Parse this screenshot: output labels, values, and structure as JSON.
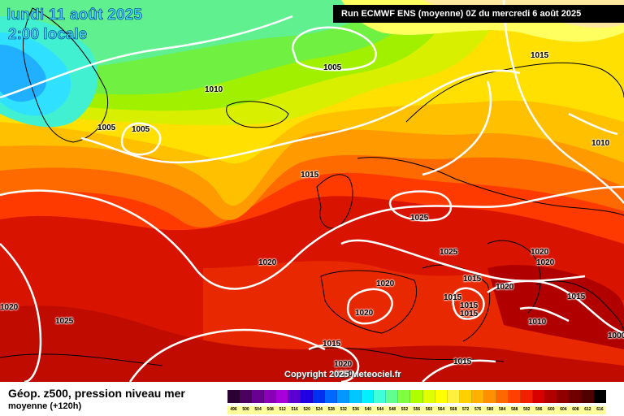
{
  "header": {
    "date": "lundi 11 août 2025",
    "local_time": "2:00 locale",
    "run": "Run ECMWF ENS (moyenne) 0Z du mercredi 6 août 2025"
  },
  "copyright": "Copyright 2025 Meteociel.fr",
  "isobar_labels": [
    "1005",
    "1005",
    "1005",
    "1010",
    "1015",
    "1015",
    "1010",
    "1025",
    "1020",
    "1025",
    "1020",
    "1020",
    "1020",
    "1020",
    "1015",
    "1020",
    "1015",
    "1015",
    "1015",
    "1010",
    "1015",
    "1020",
    "1025",
    "1015",
    "1020",
    "1020",
    "1015",
    "1000",
    "1020"
  ],
  "legend": {
    "title": "Géop. z500, pression niveau mer",
    "subtitle": "moyenne   (+120h)",
    "scale_values": [
      "496",
      "500",
      "504",
      "508",
      "512",
      "516",
      "520",
      "524",
      "528",
      "532",
      "536",
      "540",
      "544",
      "548",
      "552",
      "556",
      "560",
      "564",
      "568",
      "572",
      "576",
      "580",
      "584",
      "588",
      "592",
      "596",
      "600",
      "604",
      "608",
      "612",
      "616"
    ],
    "scale_colors": [
      "#2b0032",
      "#4b0060",
      "#6a0090",
      "#8a00b8",
      "#a800d8",
      "#5a00d0",
      "#2000e0",
      "#0030f0",
      "#0068ff",
      "#0098ff",
      "#00c8ff",
      "#00f0ff",
      "#40ffd8",
      "#60ff90",
      "#80ff40",
      "#b0ff00",
      "#e0ff00",
      "#ffff00",
      "#fff040",
      "#ffd000",
      "#ffb000",
      "#ff9000",
      "#ff6800",
      "#ff4000",
      "#f02000",
      "#d80000",
      "#b00000",
      "#900000",
      "#700000",
      "#500000",
      "#000000"
    ]
  },
  "colors": {
    "cyan": "#2ee6ff",
    "green": "#6cfc40",
    "yellow": "#f4f400",
    "orange": "#ffa000",
    "red": "#f03000"
  }
}
